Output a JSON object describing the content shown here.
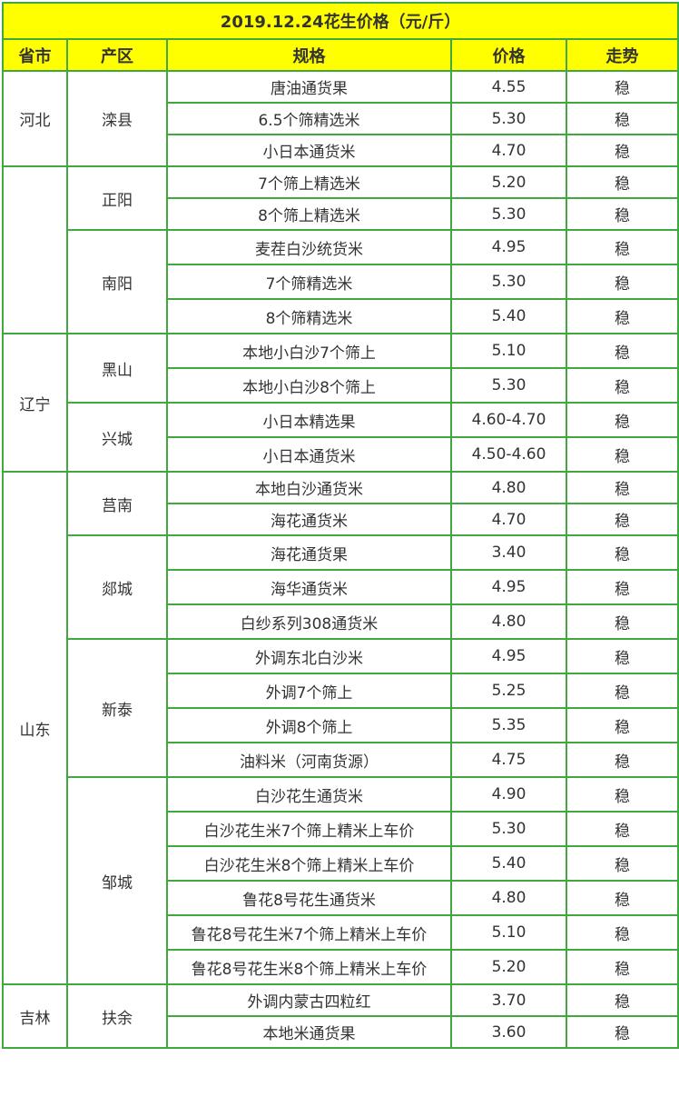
{
  "title": "2019.12.24花生价格（元/斤）",
  "headers": [
    "省市",
    "产区",
    "规格",
    "价格",
    "走势"
  ],
  "colors": {
    "header_bg": "#ffff00",
    "border": "#3fa83f",
    "text": "#333333"
  },
  "provinces": [
    {
      "name": "河北",
      "districts": [
        {
          "name": "滦县",
          "items": [
            [
              "唐油通货果",
              "4.55",
              "稳"
            ],
            [
              "6.5个筛精选米",
              "5.30",
              "稳"
            ],
            [
              "小日本通货米",
              "4.70",
              "稳"
            ]
          ]
        }
      ]
    },
    {
      "name": "",
      "districts": [
        {
          "name": "正阳",
          "items": [
            [
              "7个筛上精选米",
              "5.20",
              "稳"
            ],
            [
              "8个筛上精选米",
              "5.30",
              "稳"
            ]
          ]
        },
        {
          "name": "南阳",
          "items": [
            [
              "麦茬白沙统货米",
              "4.95",
              "稳"
            ],
            [
              "7个筛精选米",
              "5.30",
              "稳"
            ],
            [
              "8个筛精选米",
              "5.40",
              "稳"
            ]
          ]
        }
      ]
    },
    {
      "name": "辽宁",
      "districts": [
        {
          "name": "黑山",
          "items": [
            [
              "本地小白沙7个筛上",
              "5.10",
              "稳"
            ],
            [
              "本地小白沙8个筛上",
              "5.30",
              "稳"
            ]
          ]
        },
        {
          "name": "兴城",
          "items": [
            [
              "小日本精选果",
              "4.60-4.70",
              "稳"
            ],
            [
              "小日本通货米",
              "4.50-4.60",
              "稳"
            ]
          ]
        }
      ]
    },
    {
      "name": "山东",
      "districts": [
        {
          "name": "莒南",
          "items": [
            [
              "本地白沙通货米",
              "4.80",
              "稳"
            ],
            [
              "海花通货米",
              "4.70",
              "稳"
            ]
          ]
        },
        {
          "name": "郯城",
          "items": [
            [
              "海花通货果",
              "3.40",
              "稳"
            ],
            [
              "海华通货米",
              "4.95",
              "稳"
            ],
            [
              "白纱系列308通货米",
              "4.80",
              "稳"
            ]
          ]
        },
        {
          "name": "新泰",
          "items": [
            [
              "外调东北白沙米",
              "4.95",
              "稳"
            ],
            [
              "外调7个筛上",
              "5.25",
              "稳"
            ],
            [
              "外调8个筛上",
              "5.35",
              "稳"
            ],
            [
              "油料米（河南货源）",
              "4.75",
              "稳"
            ]
          ]
        },
        {
          "name": "邹城",
          "items": [
            [
              "白沙花生通货米",
              "4.90",
              "稳"
            ],
            [
              "白沙花生米7个筛上精米上车价",
              "5.30",
              "稳"
            ],
            [
              "白沙花生米8个筛上精米上车价",
              "5.40",
              "稳"
            ],
            [
              "鲁花8号花生通货米",
              "4.80",
              "稳"
            ],
            [
              "鲁花8号花生米7个筛上精米上车价",
              "5.10",
              "稳"
            ],
            [
              "鲁花8号花生米8个筛上精米上车价",
              "5.20",
              "稳"
            ]
          ]
        }
      ]
    },
    {
      "name": "吉林",
      "districts": [
        {
          "name": "扶余",
          "items": [
            [
              "外调内蒙古四粒红",
              "3.70",
              "稳"
            ],
            [
              "本地米通货果",
              "3.60",
              "稳"
            ]
          ]
        }
      ]
    }
  ]
}
